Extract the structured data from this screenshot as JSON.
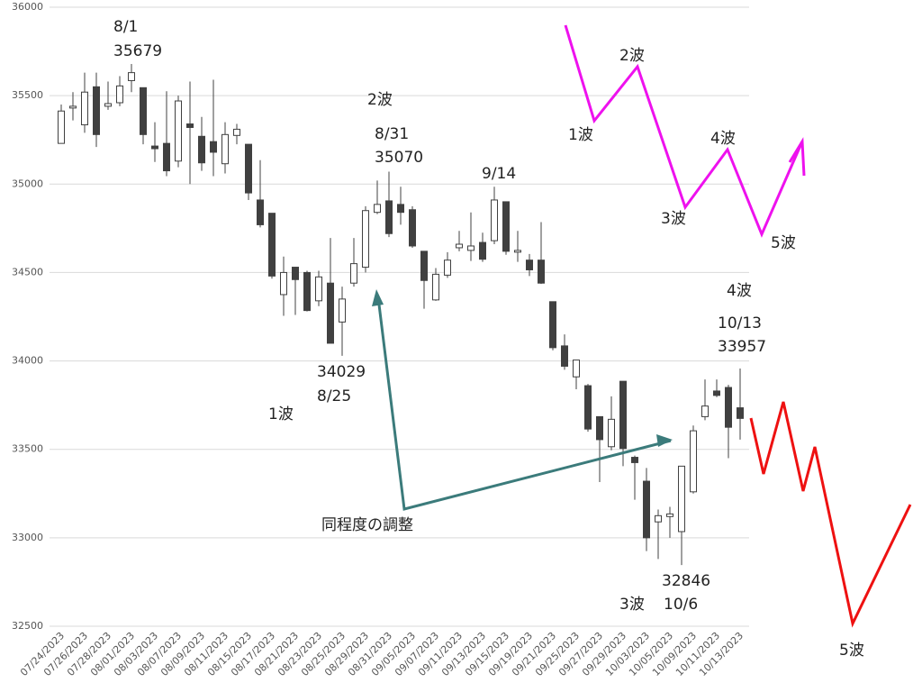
{
  "chart_data": {
    "type": "candlestick",
    "categories": [
      "07/24/2023",
      null,
      "07/26/2023",
      null,
      "07/28/2023",
      null,
      "08/01/2023",
      null,
      "08/03/2023",
      null,
      "08/07/2023",
      null,
      "08/09/2023",
      null,
      "08/11/2023",
      null,
      "08/15/2023",
      null,
      "08/17/2023",
      null,
      "08/21/2023",
      null,
      "08/23/2023",
      null,
      "08/25/2023",
      null,
      "08/29/2023",
      null,
      "08/31/2023",
      null,
      "09/05/2023",
      null,
      "09/07/2023",
      null,
      "09/11/2023",
      null,
      "09/13/2023",
      null,
      "09/15/2023",
      null,
      "09/19/2023",
      null,
      "09/21/2023",
      null,
      "09/25/2023",
      null,
      "09/27/2023",
      null,
      "09/29/2023",
      null,
      "10/03/2023",
      null,
      "10/05/2023",
      null,
      "10/09/2023",
      null,
      "10/11/2023",
      null,
      "10/13/2023"
    ],
    "open": [
      35230,
      35430,
      35335,
      35550,
      35440,
      35460,
      35585,
      35545,
      35215,
      35230,
      35130,
      35340,
      35270,
      35240,
      35115,
      35275,
      35225,
      34910,
      34835,
      34375,
      34530,
      34500,
      34340,
      34440,
      34220,
      34440,
      34530,
      34840,
      34905,
      34885,
      34855,
      34620,
      34345,
      34485,
      34640,
      34625,
      34670,
      34680,
      34900,
      34615,
      34570,
      34570,
      34335,
      34085,
      33910,
      33860,
      33685,
      33515,
      33885,
      33455,
      33320,
      33090,
      33120,
      33035,
      33260,
      33685,
      33830,
      33850,
      33735
    ],
    "high": [
      35450,
      35520,
      35630,
      35630,
      35580,
      35610,
      35679,
      35545,
      35350,
      35525,
      35500,
      35580,
      35380,
      35590,
      35350,
      35340,
      35225,
      35135,
      34835,
      34590,
      34530,
      34510,
      34510,
      34695,
      34420,
      34695,
      34875,
      35020,
      35070,
      34985,
      34875,
      34620,
      34525,
      34615,
      34735,
      34840,
      34725,
      34985,
      34900,
      34735,
      34605,
      34785,
      34335,
      34150,
      34005,
      33870,
      33685,
      33800,
      33885,
      33465,
      33395,
      33160,
      33175,
      33405,
      33635,
      33895,
      33895,
      33865,
      33957
    ],
    "low": [
      35230,
      35360,
      35290,
      35210,
      35420,
      35440,
      35520,
      35225,
      35125,
      35045,
      35095,
      35000,
      35075,
      35045,
      35060,
      35225,
      34910,
      34755,
      34465,
      34255,
      34260,
      34280,
      34310,
      34100,
      34029,
      34420,
      34500,
      34830,
      34700,
      34770,
      34640,
      34295,
      34340,
      34470,
      34620,
      34565,
      34560,
      34660,
      34600,
      34560,
      34480,
      34435,
      34060,
      33950,
      33840,
      33600,
      33315,
      33495,
      33405,
      33215,
      32925,
      32880,
      33000,
      32846,
      33250,
      33665,
      33795,
      33450,
      33555
    ],
    "close": [
      35413,
      35440,
      35520,
      35280,
      35455,
      35555,
      35630,
      35280,
      35200,
      35075,
      35470,
      35320,
      35120,
      35180,
      35280,
      35310,
      34950,
      34770,
      34480,
      34500,
      34460,
      34285,
      34475,
      34100,
      34350,
      34550,
      34850,
      34885,
      34720,
      34840,
      34650,
      34455,
      34490,
      34570,
      34660,
      34650,
      34575,
      34910,
      34620,
      34625,
      34515,
      34440,
      34075,
      33970,
      34005,
      33615,
      33555,
      33670,
      33505,
      33425,
      33000,
      33125,
      33135,
      33405,
      33605,
      33745,
      33805,
      33625,
      33675
    ],
    "up_color": "#ffffff",
    "down_color": "#404040",
    "ylim": [
      32500,
      36000
    ],
    "yticks": [
      32500,
      33000,
      33500,
      34000,
      34500,
      35000,
      35500,
      36000
    ],
    "grid": true,
    "annotations": [
      "8/1",
      "35679",
      "2波",
      "8/31",
      "35070",
      "9/14",
      "34029",
      "8/25",
      "1波",
      "同程度の調整",
      "1波",
      "2波",
      "4波",
      "3波",
      "5波",
      "4波",
      "10/13",
      "33957",
      "32846",
      "3波",
      "10/6",
      "5波"
    ]
  }
}
